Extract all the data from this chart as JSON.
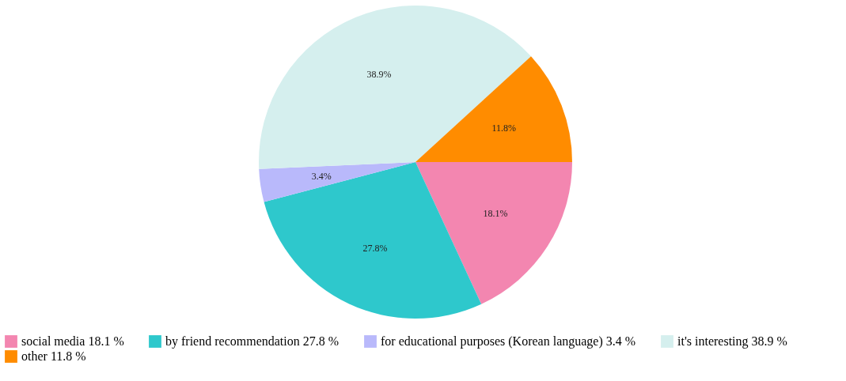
{
  "chart_data": {
    "type": "pie",
    "categories": [
      "social media 18.1 %",
      "by friend recommendation 27.8 %",
      "for educational purposes (Korean language) 3.4 %",
      "it's interesting 38.9 %",
      "other 11.8 %"
    ],
    "values": [
      18.1,
      27.8,
      3.4,
      38.9,
      11.8
    ],
    "colors": [
      "#f386b0",
      "#2ec8cc",
      "#b9b9fb",
      "#d5efee",
      "#ff8c00"
    ],
    "value_labels": [
      "18.1%",
      "27.8%",
      "3.4%",
      "38.9%",
      "11.8%"
    ],
    "legend": "bottom"
  }
}
